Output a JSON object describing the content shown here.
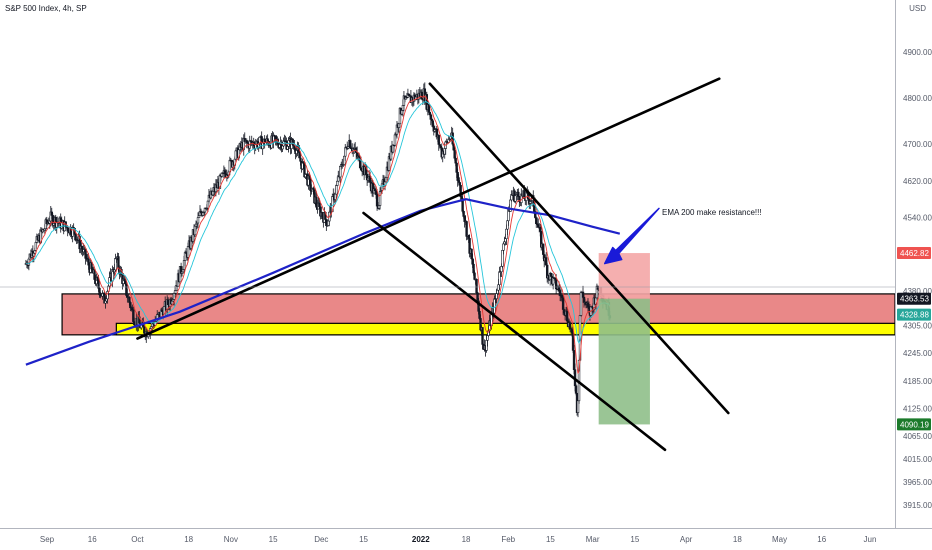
{
  "header": {
    "title": "S&P 500 Index, 4h, SP",
    "currency": "USD"
  },
  "colors": {
    "bull": "#26a69a",
    "bear": "#ef5350",
    "candle": "#131722",
    "ema200": "#1e22c8",
    "ema_fast": "#e53935",
    "ema_slow": "#26c6da",
    "trendline": "#000000",
    "zone_red": "#e57373",
    "zone_yellow": "#ffff00",
    "risk": "#f4a6a6",
    "reward": "#8fbf8a",
    "arrow": "#1a1ad8",
    "badge_red": "#ef5350",
    "badge_green": "#26a69a",
    "badge_dark": "#131722",
    "badge_green_dark": "#1b7a2a"
  },
  "chart_data": {
    "type": "candlestick",
    "title": "S&P 500 Index, 4h, SP",
    "ylim": [
      3880,
      5000
    ],
    "y_ticks": [
      "4900.00",
      "4800.00",
      "4700.00",
      "4620.00",
      "4540.00",
      "4380.00",
      "4305.00",
      "4245.00",
      "4185.00",
      "4125.00",
      "4065.00",
      "4015.00",
      "3965.00",
      "3915.00"
    ],
    "y_tick_values": [
      4900,
      4800,
      4700,
      4620,
      4540,
      4380,
      4305,
      4245,
      4185,
      4125,
      4065,
      4015,
      3965,
      3915
    ],
    "x_ticks": [
      {
        "label": "Sep",
        "date": "2021-09-01",
        "year": false
      },
      {
        "label": "16",
        "date": "2021-09-16",
        "year": false
      },
      {
        "label": "Oct",
        "date": "2021-10-01",
        "year": false
      },
      {
        "label": "18",
        "date": "2021-10-18",
        "year": false
      },
      {
        "label": "Nov",
        "date": "2021-11-01",
        "year": false
      },
      {
        "label": "15",
        "date": "2021-11-15",
        "year": false
      },
      {
        "label": "Dec",
        "date": "2021-12-01",
        "year": false
      },
      {
        "label": "15",
        "date": "2021-12-15",
        "year": false
      },
      {
        "label": "2022",
        "date": "2022-01-03",
        "year": true
      },
      {
        "label": "18",
        "date": "2022-01-18",
        "year": false
      },
      {
        "label": "Feb",
        "date": "2022-02-01",
        "year": false
      },
      {
        "label": "15",
        "date": "2022-02-15",
        "year": false
      },
      {
        "label": "Mar",
        "date": "2022-03-01",
        "year": false
      },
      {
        "label": "15",
        "date": "2022-03-15",
        "year": false
      },
      {
        "label": "Apr",
        "date": "2022-04-01",
        "year": false
      },
      {
        "label": "18",
        "date": "2022-04-18",
        "year": false
      },
      {
        "label": "May",
        "date": "2022-05-02",
        "year": false
      },
      {
        "label": "16",
        "date": "2022-05-16",
        "year": false
      },
      {
        "label": "Jun",
        "date": "2022-06-01",
        "year": false
      }
    ],
    "price_path": [
      [
        "2021-08-25",
        4440
      ],
      [
        "2021-09-02",
        4540
      ],
      [
        "2021-09-10",
        4510
      ],
      [
        "2021-09-20",
        4360
      ],
      [
        "2021-09-24",
        4450
      ],
      [
        "2021-09-30",
        4320
      ],
      [
        "2021-10-04",
        4290
      ],
      [
        "2021-10-12",
        4360
      ],
      [
        "2021-10-22",
        4550
      ],
      [
        "2021-11-05",
        4700
      ],
      [
        "2021-11-15",
        4705
      ],
      [
        "2021-11-22",
        4700
      ],
      [
        "2021-11-30",
        4560
      ],
      [
        "2021-12-03",
        4530
      ],
      [
        "2021-12-10",
        4710
      ],
      [
        "2021-12-17",
        4620
      ],
      [
        "2021-12-20",
        4570
      ],
      [
        "2021-12-28",
        4790
      ],
      [
        "2022-01-04",
        4810
      ],
      [
        "2022-01-10",
        4680
      ],
      [
        "2022-01-13",
        4720
      ],
      [
        "2022-01-21",
        4400
      ],
      [
        "2022-01-24",
        4250
      ],
      [
        "2022-01-28",
        4370
      ],
      [
        "2022-02-02",
        4590
      ],
      [
        "2022-02-09",
        4580
      ],
      [
        "2022-02-14",
        4420
      ],
      [
        "2022-02-18",
        4380
      ],
      [
        "2022-02-22",
        4290
      ],
      [
        "2022-02-24",
        4110
      ],
      [
        "2022-02-25",
        4380
      ],
      [
        "2022-02-28",
        4330
      ],
      [
        "2022-03-03",
        4390
      ],
      [
        "2022-03-07",
        4330
      ]
    ],
    "ema200": [
      [
        "2021-08-25",
        4220
      ],
      [
        "2021-09-15",
        4270
      ],
      [
        "2021-10-15",
        4335
      ],
      [
        "2021-11-15",
        4420
      ],
      [
        "2021-12-15",
        4505
      ],
      [
        "2022-01-03",
        4555
      ],
      [
        "2022-01-18",
        4580
      ],
      [
        "2022-02-01",
        4560
      ],
      [
        "2022-02-15",
        4545
      ],
      [
        "2022-03-01",
        4520
      ],
      [
        "2022-03-10",
        4505
      ]
    ],
    "zones": [
      {
        "name": "resistance-zone",
        "from": "2021-09-06",
        "to": "2022-06-10",
        "top": 4374,
        "bottom": 4285
      },
      {
        "name": "support-zone",
        "from": "2021-09-24",
        "to": "2022-06-10",
        "top": 4310,
        "bottom": 4285
      }
    ],
    "trendlines": [
      {
        "name": "rising-trendline",
        "from": [
          "2021-10-01",
          4277
        ],
        "to": [
          "2022-04-12",
          4842
        ]
      },
      {
        "name": "upper-channel-line",
        "from": [
          "2022-01-06",
          4831
        ],
        "to": [
          "2022-04-15",
          4115
        ]
      },
      {
        "name": "lower-channel-line",
        "from": [
          "2021-12-15",
          4550
        ],
        "to": [
          "2022-03-25",
          4035
        ]
      }
    ],
    "position": {
      "type": "short",
      "from": "2022-03-03",
      "to": "2022-03-20",
      "stop": 4462.82,
      "entry": 4363.53,
      "target": 4090.19
    },
    "price_labels": [
      {
        "value": "4462.82",
        "level": 4462.82,
        "style": "red"
      },
      {
        "value": "4363.53",
        "level": 4363.53,
        "style": "dark"
      },
      {
        "value": "4328.88",
        "level": 4328.88,
        "style": "green"
      },
      {
        "value": "4090.19",
        "level": 4090.19,
        "style": "green-dark"
      }
    ],
    "annotation": {
      "text": "EMA 200 make resistance!!!",
      "date": "2022-03-24",
      "price": 4546
    }
  }
}
